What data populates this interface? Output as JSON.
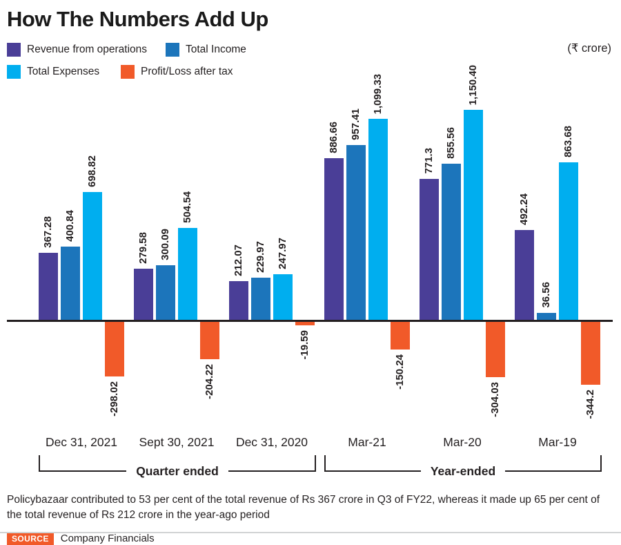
{
  "title": "How The Numbers Add Up",
  "unit_note": "(₹ crore)",
  "colors": {
    "revenue": "#4a3e97",
    "total_income": "#1c75bb",
    "total_expenses": "#00aeef",
    "profit_loss": "#f15a29",
    "axis": "#231f20"
  },
  "legend": [
    {
      "label": "Revenue from operations",
      "color": "#4a3e97"
    },
    {
      "label": "Total Income",
      "color": "#1c75bb"
    },
    {
      "label": "Total Expenses",
      "color": "#00aeef"
    },
    {
      "label": "Profit/Loss after tax",
      "color": "#f15a29"
    }
  ],
  "chart_data": {
    "type": "bar",
    "categories": [
      "Dec 31, 2021",
      "Sept 30, 2021",
      "Dec 31, 2020",
      "Mar-21",
      "Mar-20",
      "Mar-19"
    ],
    "group_sections": [
      {
        "label": "Quarter ended",
        "categories": [
          "Dec 31, 2021",
          "Sept 30, 2021",
          "Dec 31, 2020"
        ]
      },
      {
        "label": "Year-ended",
        "categories": [
          "Mar-21",
          "Mar-20",
          "Mar-19"
        ]
      }
    ],
    "series": [
      {
        "name": "Revenue from operations",
        "color": "#4a3e97",
        "values": [
          367.28,
          279.58,
          212.07,
          886.66,
          771.3,
          492.24
        ],
        "labels": [
          "367.28",
          "279.58",
          "212.07",
          "886.66",
          "771.3",
          "492.24"
        ]
      },
      {
        "name": "Total Income",
        "color": "#1c75bb",
        "values": [
          400.84,
          300.09,
          229.97,
          957.41,
          855.56,
          36.56
        ],
        "labels": [
          "400.84",
          "300.09",
          "229.97",
          "957.41",
          "855.56",
          "36.56"
        ]
      },
      {
        "name": "Total Expenses",
        "color": "#00aeef",
        "values": [
          698.82,
          504.54,
          247.97,
          1099.33,
          1150.4,
          863.68
        ],
        "labels": [
          "698.82",
          "504.54",
          "247.97",
          "1,099.33",
          "1,150.40",
          "863.68"
        ]
      },
      {
        "name": "Profit/Loss after tax",
        "color": "#f15a29",
        "values": [
          -298.02,
          -204.22,
          -19.59,
          -150.24,
          -304.03,
          -344.2
        ],
        "labels": [
          "-298.02",
          "-204.22",
          "-19.59",
          "-150.24",
          "-304.03",
          "-344.2"
        ]
      }
    ],
    "ylim": [
      -400,
      1200
    ],
    "grid": false,
    "legend_position": "top-left",
    "value_labels_rotation": "vertical"
  },
  "footnote": "Policybazaar contributed to 53 per cent of the total revenue of Rs 367 crore in Q3 of FY22, whereas it made up 65 per cent of the total revenue of Rs 212 crore in the year-ago period",
  "source": {
    "badge": "SOURCE",
    "text": "Company Financials"
  }
}
